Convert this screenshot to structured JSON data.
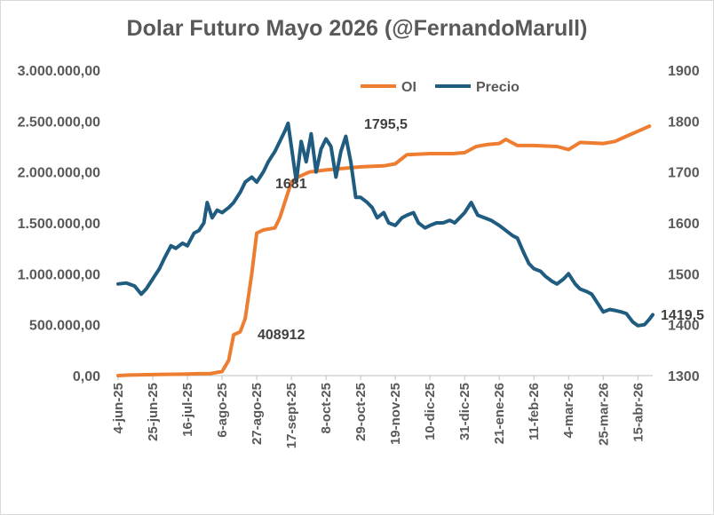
{
  "chart_data": {
    "type": "line",
    "title": "Dolar Futuro Mayo 2026 (@FernandoMarull)",
    "x_tick_labels": [
      "4-jun-25",
      "25-jun-25",
      "16-jul-25",
      "6-ago-25",
      "27-ago-25",
      "17-sept-25",
      "8-oct-25",
      "29-oct-25",
      "19-nov-25",
      "10-dic-25",
      "31-dic-25",
      "21-ene-26",
      "11-feb-26",
      "4-mar-26",
      "25-mar-26",
      "15-abr-26"
    ],
    "y_left": {
      "ticks": [
        "0,00",
        "500.000,00",
        "1.000.000,00",
        "1.500.000,00",
        "2.000.000,00",
        "2.500.000,00",
        "3.000.000,00"
      ],
      "range": [
        0,
        3000000
      ]
    },
    "y_right": {
      "ticks": [
        "1300",
        "1400",
        "1500",
        "1600",
        "1700",
        "1800",
        "1900"
      ],
      "range": [
        1300,
        1900
      ]
    },
    "legend_position": "top",
    "grid": false,
    "annotations": [
      "1795,5",
      "1681",
      "408912",
      "1419,5"
    ],
    "series": [
      {
        "name": "OI",
        "axis": "left",
        "color": "#ED7D31",
        "points": [
          [
            "4-jun-25",
            0
          ],
          [
            "11-jun-25",
            5000
          ],
          [
            "18-jun-25",
            8000
          ],
          [
            "25-jun-25",
            10000
          ],
          [
            "2-jul-25",
            12000
          ],
          [
            "9-jul-25",
            13000
          ],
          [
            "16-jul-25",
            15000
          ],
          [
            "23-jul-25",
            18000
          ],
          [
            "30-jul-25",
            20000
          ],
          [
            "6-ago-25",
            40000
          ],
          [
            "10-ago-25",
            150000
          ],
          [
            "13-ago-25",
            400000
          ],
          [
            "17-ago-25",
            430000
          ],
          [
            "20-ago-25",
            560000
          ],
          [
            "24-ago-25",
            1000000
          ],
          [
            "27-ago-25",
            1400000
          ],
          [
            "31-ago-25",
            1430000
          ],
          [
            "7-sept-25",
            1450000
          ],
          [
            "10-sept-25",
            1550000
          ],
          [
            "14-sept-25",
            1750000
          ],
          [
            "17-sept-25",
            1900000
          ],
          [
            "21-sept-25",
            1950000
          ],
          [
            "28-sept-25",
            2000000
          ],
          [
            "8-oct-25",
            2020000
          ],
          [
            "22-oct-25",
            2040000
          ],
          [
            "29-oct-25",
            2050000
          ],
          [
            "12-nov-25",
            2060000
          ],
          [
            "19-nov-25",
            2080000
          ],
          [
            "26-nov-25",
            2170000
          ],
          [
            "10-dic-25",
            2180000
          ],
          [
            "24-dic-25",
            2180000
          ],
          [
            "31-dic-25",
            2190000
          ],
          [
            "7-ene-26",
            2250000
          ],
          [
            "14-ene-26",
            2270000
          ],
          [
            "21-ene-26",
            2280000
          ],
          [
            "25-ene-26",
            2320000
          ],
          [
            "1-feb-26",
            2260000
          ],
          [
            "11-feb-26",
            2260000
          ],
          [
            "25-feb-26",
            2250000
          ],
          [
            "4-mar-26",
            2220000
          ],
          [
            "11-mar-26",
            2290000
          ],
          [
            "25-mar-26",
            2280000
          ],
          [
            "1-abr-26",
            2300000
          ],
          [
            "8-abr-26",
            2350000
          ],
          [
            "15-abr-26",
            2400000
          ],
          [
            "22-abr-26",
            2450000
          ]
        ]
      },
      {
        "name": "Precio",
        "axis": "right",
        "color": "#1F5C7F",
        "points": [
          [
            "4-jun-25",
            1480
          ],
          [
            "9-jun-25",
            1482
          ],
          [
            "14-jun-25",
            1476
          ],
          [
            "18-jun-25",
            1460
          ],
          [
            "21-jun-25",
            1470
          ],
          [
            "25-jun-25",
            1490
          ],
          [
            "29-jun-25",
            1510
          ],
          [
            "2-jul-25",
            1530
          ],
          [
            "6-jul-25",
            1555
          ],
          [
            "9-jul-25",
            1550
          ],
          [
            "13-jul-25",
            1560
          ],
          [
            "16-jul-25",
            1555
          ],
          [
            "20-jul-25",
            1580
          ],
          [
            "23-jul-25",
            1585
          ],
          [
            "26-jul-25",
            1600
          ],
          [
            "28-jul-25",
            1640
          ],
          [
            "31-jul-25",
            1610
          ],
          [
            "3-ago-25",
            1625
          ],
          [
            "6-ago-25",
            1620
          ],
          [
            "10-ago-25",
            1630
          ],
          [
            "13-ago-25",
            1640
          ],
          [
            "17-ago-25",
            1660
          ],
          [
            "20-ago-25",
            1680
          ],
          [
            "24-ago-25",
            1690
          ],
          [
            "27-ago-25",
            1680
          ],
          [
            "31-ago-25",
            1700
          ],
          [
            "3-sept-25",
            1720
          ],
          [
            "7-sept-25",
            1740
          ],
          [
            "10-sept-25",
            1760
          ],
          [
            "13-sept-25",
            1780
          ],
          [
            "15-sept-25",
            1795.5
          ],
          [
            "17-sept-25",
            1750
          ],
          [
            "20-sept-25",
            1681
          ],
          [
            "23-sept-25",
            1760
          ],
          [
            "26-sept-25",
            1720
          ],
          [
            "29-sept-25",
            1775
          ],
          [
            "2-oct-25",
            1700
          ],
          [
            "5-oct-25",
            1745
          ],
          [
            "8-oct-25",
            1765
          ],
          [
            "11-oct-25",
            1750
          ],
          [
            "14-oct-25",
            1690
          ],
          [
            "17-oct-25",
            1740
          ],
          [
            "20-oct-25",
            1770
          ],
          [
            "23-oct-25",
            1720
          ],
          [
            "26-oct-25",
            1650
          ],
          [
            "29-oct-25",
            1650
          ],
          [
            "2-nov-25",
            1640
          ],
          [
            "5-nov-25",
            1630
          ],
          [
            "8-nov-25",
            1610
          ],
          [
            "12-nov-25",
            1620
          ],
          [
            "15-nov-25",
            1600
          ],
          [
            "19-nov-25",
            1595
          ],
          [
            "23-nov-25",
            1610
          ],
          [
            "26-nov-25",
            1615
          ],
          [
            "30-nov-25",
            1620
          ],
          [
            "3-dic-25",
            1600
          ],
          [
            "7-dic-25",
            1590
          ],
          [
            "10-dic-25",
            1595
          ],
          [
            "14-dic-25",
            1600
          ],
          [
            "18-dic-25",
            1600
          ],
          [
            "22-dic-25",
            1605
          ],
          [
            "25-dic-25",
            1600
          ],
          [
            "28-dic-25",
            1610
          ],
          [
            "31-dic-25",
            1620
          ],
          [
            "4-ene-26",
            1640
          ],
          [
            "8-ene-26",
            1615
          ],
          [
            "12-ene-26",
            1610
          ],
          [
            "16-ene-26",
            1605
          ],
          [
            "21-ene-26",
            1595
          ],
          [
            "25-ene-26",
            1585
          ],
          [
            "29-ene-26",
            1575
          ],
          [
            "1-feb-26",
            1570
          ],
          [
            "5-feb-26",
            1540
          ],
          [
            "8-feb-26",
            1520
          ],
          [
            "11-feb-26",
            1510
          ],
          [
            "15-feb-26",
            1505
          ],
          [
            "18-feb-26",
            1495
          ],
          [
            "22-feb-26",
            1485
          ],
          [
            "25-feb-26",
            1480
          ],
          [
            "1-mar-26",
            1490
          ],
          [
            "4-mar-26",
            1500
          ],
          [
            "8-mar-26",
            1480
          ],
          [
            "11-mar-26",
            1470
          ],
          [
            "15-mar-26",
            1465
          ],
          [
            "18-mar-26",
            1460
          ],
          [
            "22-mar-26",
            1440
          ],
          [
            "25-mar-26",
            1425
          ],
          [
            "29-mar-26",
            1430
          ],
          [
            "1-abr-26",
            1428
          ],
          [
            "5-abr-26",
            1425
          ],
          [
            "8-abr-26",
            1422
          ],
          [
            "12-abr-26",
            1405
          ],
          [
            "15-abr-26",
            1398
          ],
          [
            "19-abr-26",
            1400
          ],
          [
            "22-abr-26",
            1411
          ],
          [
            "24-abr-26",
            1419.5
          ]
        ]
      }
    ]
  }
}
